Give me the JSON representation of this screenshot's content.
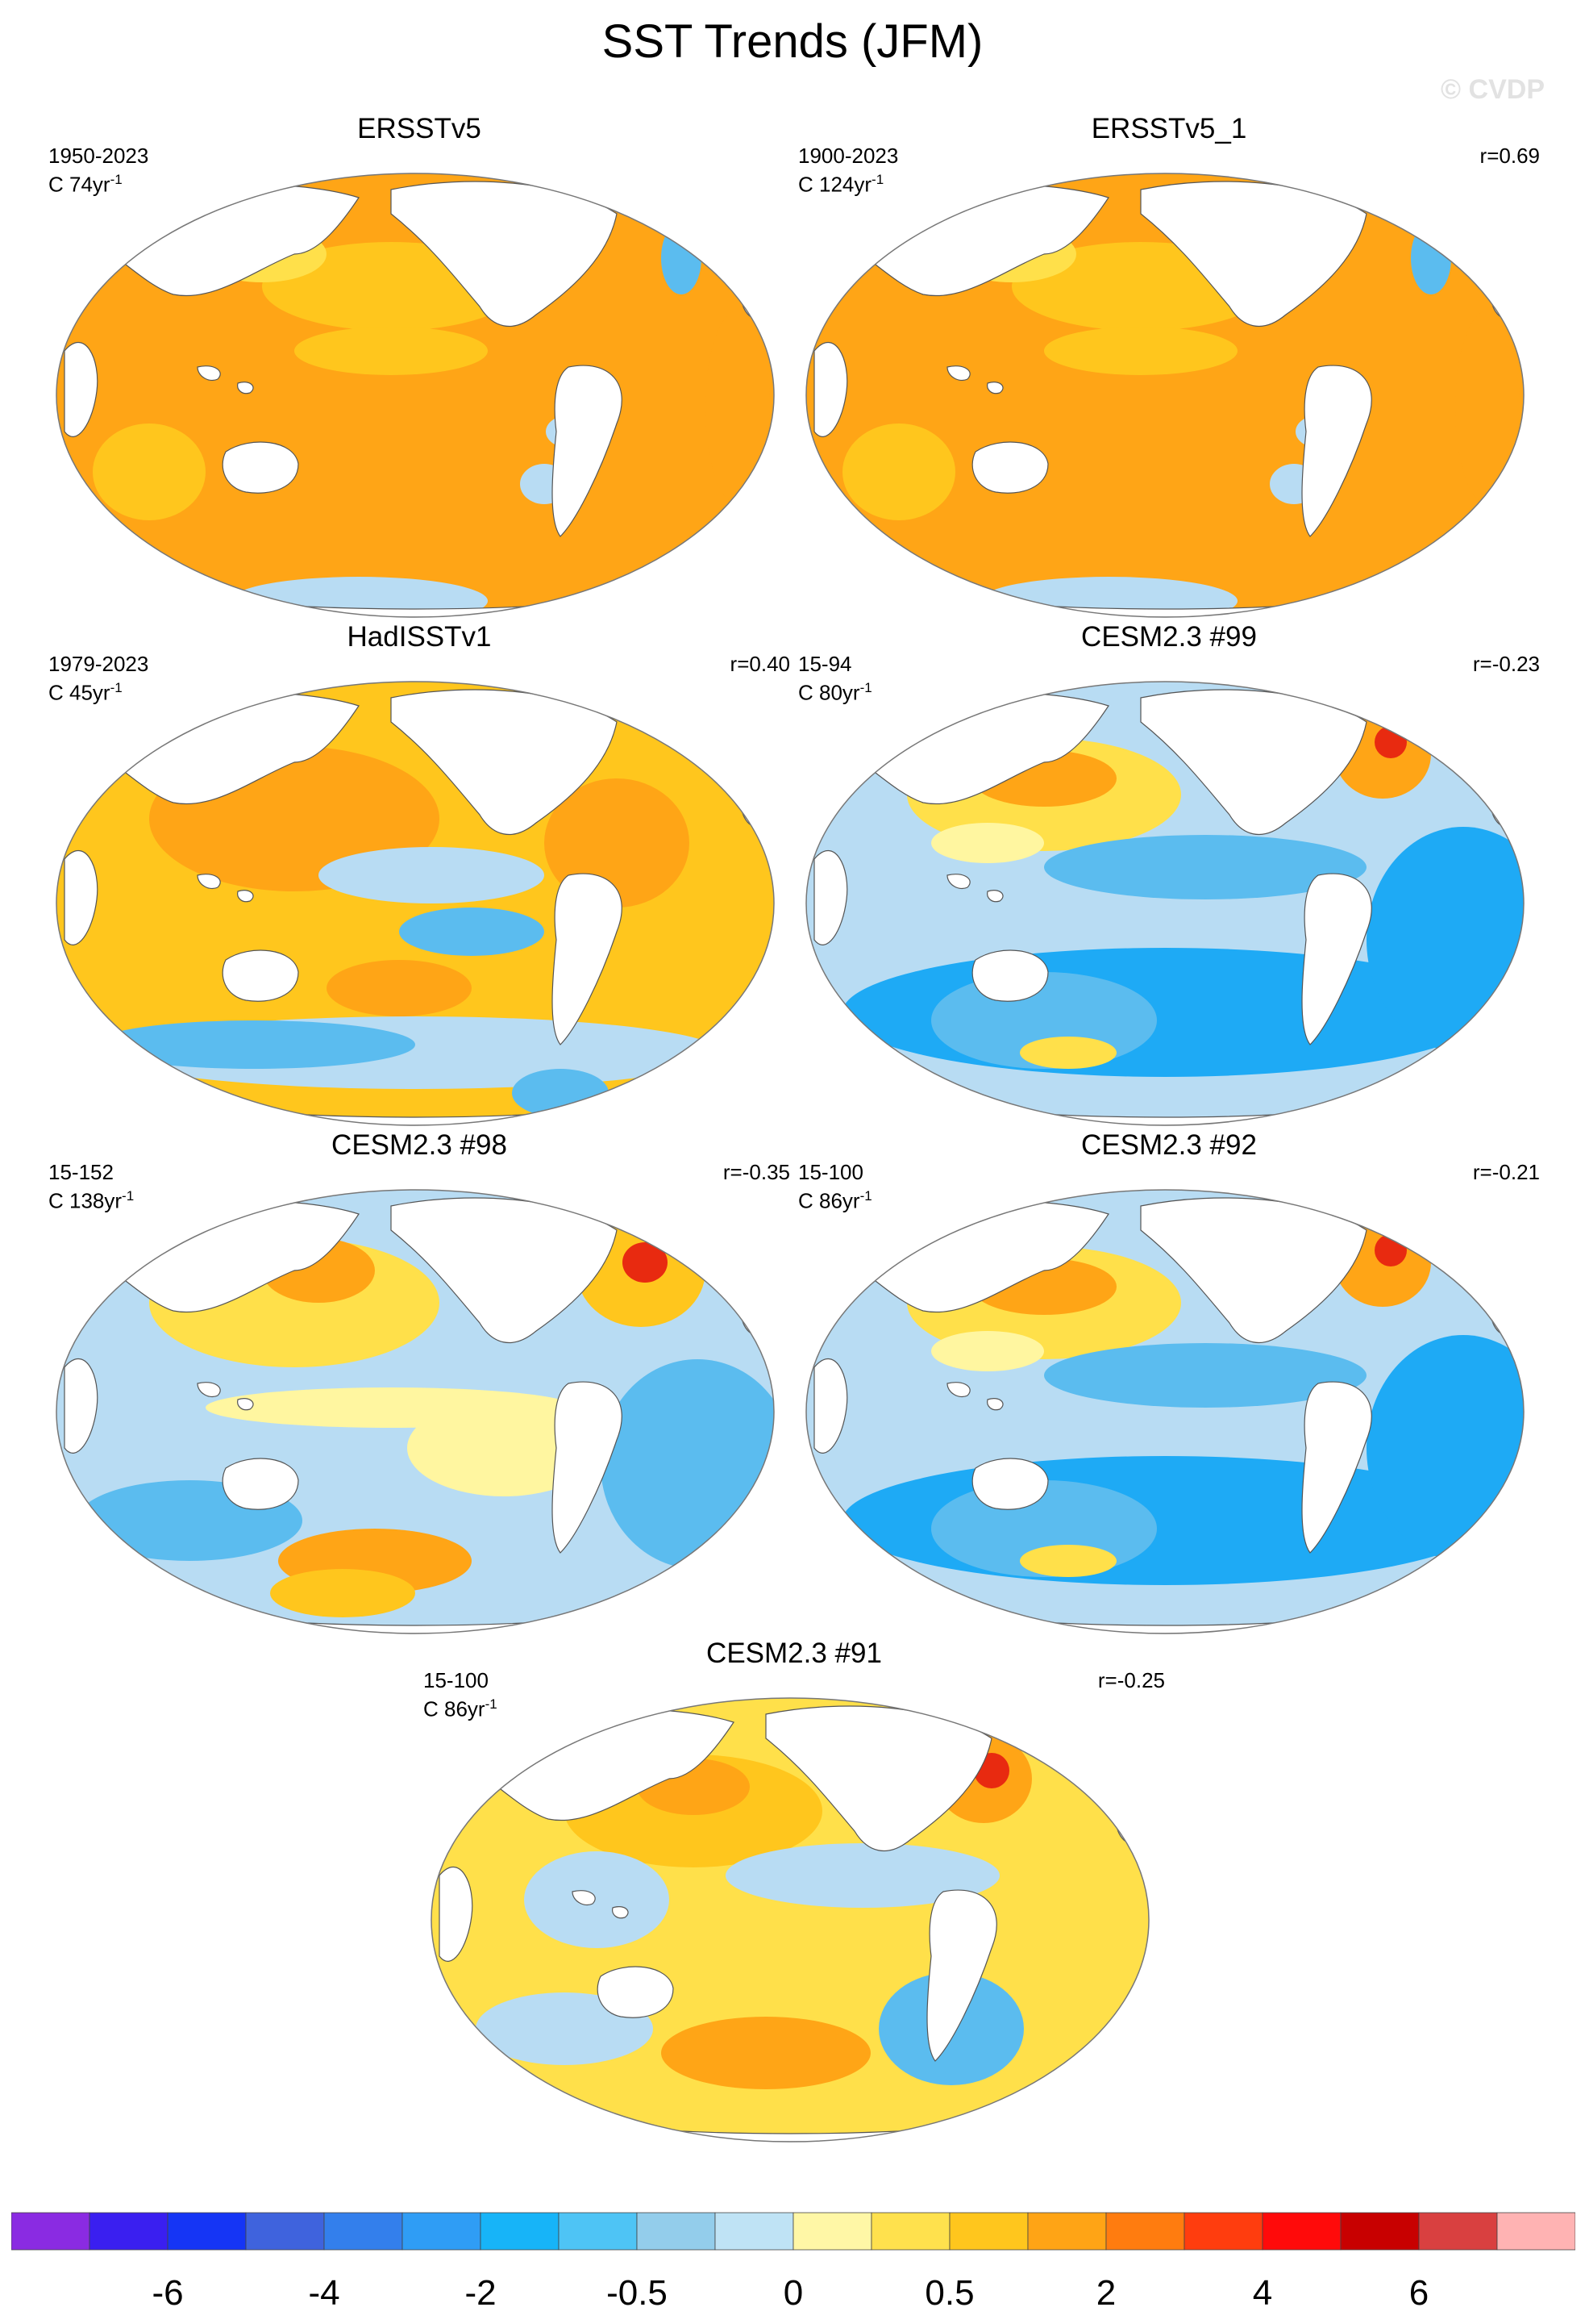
{
  "figure": {
    "title": "SST Trends (JFM)",
    "copyright": "© CVDP"
  },
  "panels": [
    {
      "title": "ERSSTv5",
      "period": "1950-2023",
      "trend_value": "C 74yr",
      "trend_exp": "-1",
      "r": "",
      "pattern": "warm_strong"
    },
    {
      "title": "ERSSTv5_1",
      "period": "1900-2023",
      "trend_value": "C 124yr",
      "trend_exp": "-1",
      "r": "r=0.69",
      "pattern": "warm_strong"
    },
    {
      "title": "HadISSTv1",
      "period": "1979-2023",
      "trend_value": "C 45yr",
      "trend_exp": "-1",
      "r": "r=0.40",
      "pattern": "warm_mixed"
    },
    {
      "title": "CESM2.3 #99",
      "period": "15-94",
      "trend_value": "C 80yr",
      "trend_exp": "-1",
      "r": "r=-0.23",
      "pattern": "cool_south"
    },
    {
      "title": "CESM2.3 #98",
      "period": "15-152",
      "trend_value": "C 138yr",
      "trend_exp": "-1",
      "r": "r=-0.35",
      "pattern": "mixed"
    },
    {
      "title": "CESM2.3 #92",
      "period": "15-100",
      "trend_value": "C 86yr",
      "trend_exp": "-1",
      "r": "r=-0.21",
      "pattern": "cool_south"
    },
    {
      "title": "CESM2.3 #91",
      "period": "15-100",
      "trend_value": "C 86yr",
      "trend_exp": "-1",
      "r": "r=-0.25",
      "pattern": "mixed_warm"
    }
  ],
  "colorbar": {
    "colors": [
      "#8a2be2",
      "#3a1ff0",
      "#1535f5",
      "#3f63dd",
      "#337fec",
      "#2f9df5",
      "#17b4f8",
      "#4ec4f5",
      "#93cdeb",
      "#bfe3f5",
      "#fff7a6",
      "#ffe14d",
      "#ffc61d",
      "#ffa415",
      "#ff7c0f",
      "#ff3d0e",
      "#ff0a0a",
      "#c80000",
      "#d94040",
      "#ffb3b3"
    ],
    "labels": [
      "-6",
      "-4",
      "-2",
      "-0.5",
      "0",
      "0.5",
      "2",
      "4",
      "6"
    ]
  },
  "palette": {
    "land": "#ffffff",
    "outline": "#555555",
    "deep_blue": "#1eaaf5",
    "mid_blue": "#5bbcef",
    "light_blue": "#b8dcf3",
    "pale_yellow": "#fff6a0",
    "yellow": "#ffe04a",
    "gold": "#ffc61d",
    "orange": "#ffa516",
    "red": "#e82a10"
  }
}
